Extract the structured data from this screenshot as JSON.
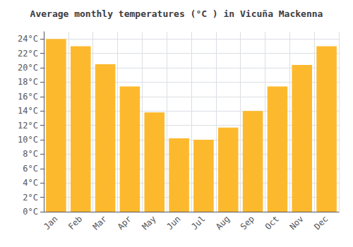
{
  "chart_data": {
    "type": "bar",
    "title": "Average monthly temperatures (°C ) in Vicuña Mackenna",
    "categories": [
      "Jan",
      "Feb",
      "Mar",
      "Apr",
      "May",
      "Jun",
      "Jul",
      "Aug",
      "Sep",
      "Oct",
      "Nov",
      "Dec"
    ],
    "values": [
      24.0,
      23.0,
      20.5,
      17.4,
      13.8,
      10.2,
      10.0,
      11.7,
      14.0,
      17.4,
      20.4,
      23.0
    ],
    "color": "#FDB92E",
    "ylim": [
      0,
      25
    ],
    "yticks": [
      {
        "value": 0,
        "label": "0°C"
      },
      {
        "value": 2,
        "label": "2°C"
      },
      {
        "value": 4,
        "label": "4°C"
      },
      {
        "value": 6,
        "label": "6°C"
      },
      {
        "value": 8,
        "label": "8°C"
      },
      {
        "value": 10,
        "label": "10°C"
      },
      {
        "value": 12,
        "label": "12°C"
      },
      {
        "value": 14,
        "label": "14°C"
      },
      {
        "value": 16,
        "label": "16°C"
      },
      {
        "value": 18,
        "label": "18°C"
      },
      {
        "value": 20,
        "label": "20°C"
      },
      {
        "value": 22,
        "label": "22°C"
      },
      {
        "value": 24,
        "label": "24°C"
      }
    ],
    "grid": true
  }
}
